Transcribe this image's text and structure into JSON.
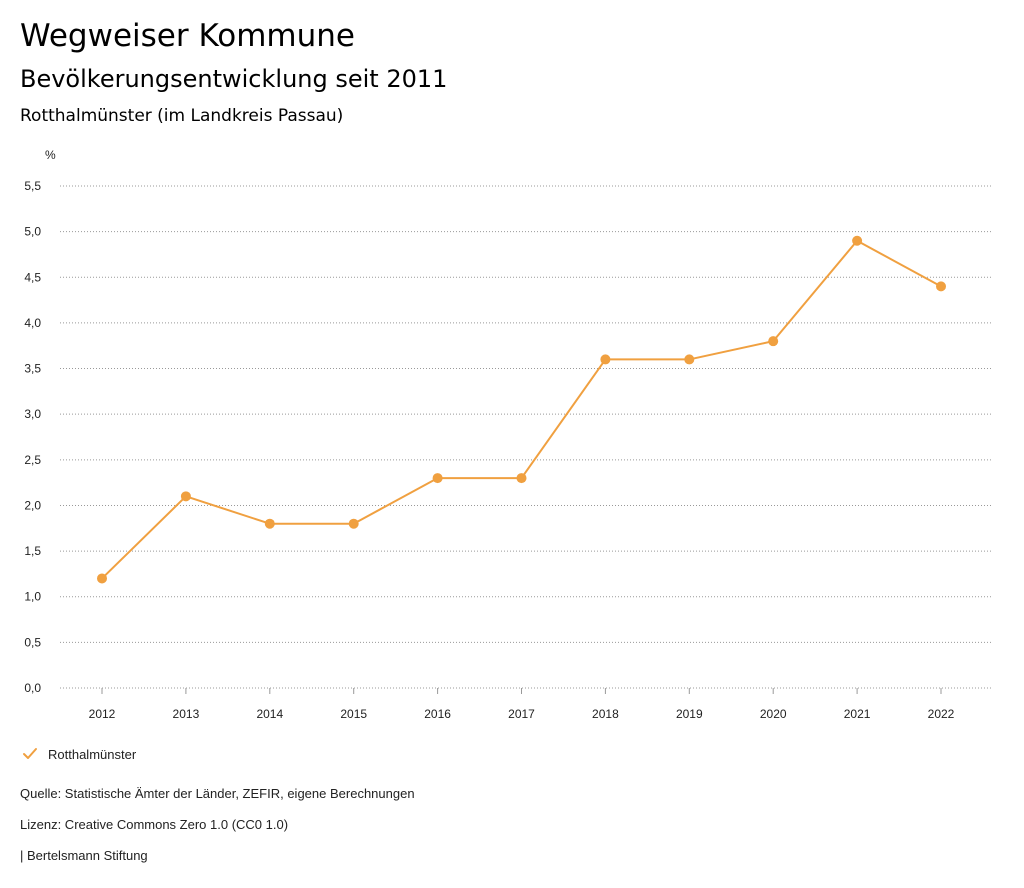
{
  "header": {
    "title": "Wegweiser Kommune",
    "subtitle": "Bevölkerungsentwicklung seit 2011",
    "region": "Rotthalmünster (im Landkreis Passau)"
  },
  "chart_data": {
    "type": "line",
    "title": "Bevölkerungsentwicklung seit 2011",
    "xlabel": "",
    "ylabel": "%",
    "categories": [
      "2012",
      "2013",
      "2014",
      "2015",
      "2016",
      "2017",
      "2018",
      "2019",
      "2020",
      "2021",
      "2022"
    ],
    "series": [
      {
        "name": "Rotthalmünster",
        "color": "#f0a040",
        "values": [
          1.2,
          2.1,
          1.8,
          1.8,
          2.3,
          2.3,
          3.6,
          3.6,
          3.8,
          4.9,
          4.4
        ]
      }
    ],
    "ylim": [
      0,
      5.5
    ],
    "yticks": [
      0,
      0.5,
      1.0,
      1.5,
      2.0,
      2.5,
      3.0,
      3.5,
      4.0,
      4.5,
      5.0,
      5.5
    ],
    "ytick_labels": [
      "0,0",
      "0,5",
      "1,0",
      "1,5",
      "2,0",
      "2,5",
      "3,0",
      "3,5",
      "4,0",
      "4,5",
      "5,0",
      "5,5"
    ],
    "grid": true,
    "legend": "bottom-left"
  },
  "legend": {
    "label": "Rotthalmünster",
    "color": "#f0a040",
    "icon": "check-icon"
  },
  "footer": {
    "source": "Quelle: Statistische Ämter der Länder, ZEFIR, eigene Berechnungen",
    "license": "Lizenz: Creative Commons Zero 1.0 (CC0 1.0)",
    "brand": "| Bertelsmann Stiftung"
  }
}
